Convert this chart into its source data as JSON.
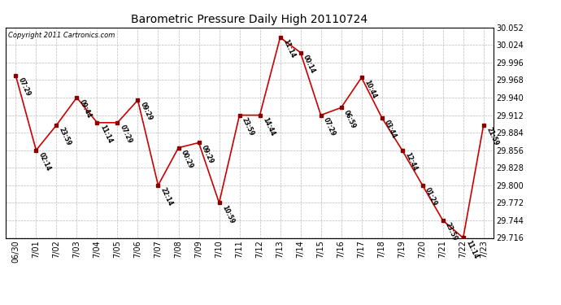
{
  "title": "Barometric Pressure Daily High 20110724",
  "copyright": "Copyright 2011 Cartronics.com",
  "dates": [
    "06/30",
    "7/01",
    "7/02",
    "7/03",
    "7/04",
    "7/05",
    "7/06",
    "7/07",
    "7/08",
    "7/09",
    "7/10",
    "7/11",
    "7/12",
    "7/13",
    "7/14",
    "7/15",
    "7/16",
    "7/17",
    "7/18",
    "7/19",
    "7/20",
    "7/21",
    "7/22",
    "7/23"
  ],
  "values": [
    29.975,
    29.856,
    29.896,
    29.94,
    29.9,
    29.9,
    29.936,
    29.8,
    29.86,
    29.868,
    29.772,
    29.912,
    29.912,
    30.036,
    30.012,
    29.912,
    29.924,
    29.972,
    29.908,
    29.856,
    29.8,
    29.744,
    29.716,
    29.896
  ],
  "labels": [
    "07:29",
    "02:14",
    "23:59",
    "09:44",
    "11:14",
    "07:29",
    "09:29",
    "22:14",
    "00:29",
    "09:29",
    "10:59",
    "23:59",
    "14:44",
    "11:14",
    "00:14",
    "07:29",
    "06:59",
    "10:44",
    "03:44",
    "12:44",
    "01:29",
    "23:59",
    "11:14",
    "21:59"
  ],
  "line_color": "#cc0000",
  "marker_color": "#880000",
  "background_color": "#ffffff",
  "grid_color": "#bbbbbb",
  "ylim_min": 29.716,
  "ylim_max": 30.052,
  "ytick_step": 0.028,
  "yticks": [
    29.716,
    29.744,
    29.772,
    29.8,
    29.828,
    29.856,
    29.884,
    29.912,
    29.94,
    29.968,
    29.996,
    30.024,
    30.052
  ]
}
